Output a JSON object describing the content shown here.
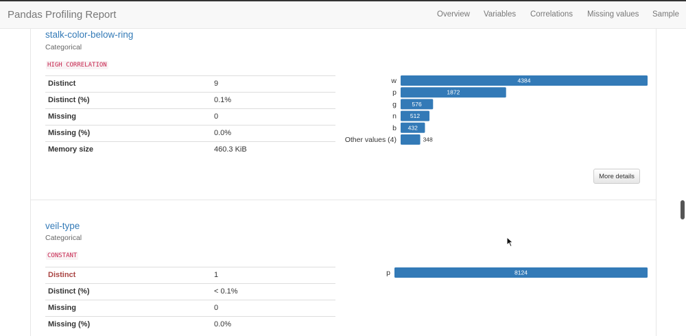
{
  "app": {
    "brand": "Pandas Profiling Report",
    "nav": [
      "Overview",
      "Variables",
      "Correlations",
      "Missing values",
      "Sample"
    ]
  },
  "variables": [
    {
      "name": "stalk-color-below-ring",
      "type": "Categorical",
      "badge": "HIGH CORRELATION",
      "stats": [
        {
          "key": "Distinct",
          "value": "9",
          "alert": false
        },
        {
          "key": "Distinct (%)",
          "value": "0.1%",
          "alert": false
        },
        {
          "key": "Missing",
          "value": "0",
          "alert": false
        },
        {
          "key": "Missing (%)",
          "value": "0.0%",
          "alert": false
        },
        {
          "key": "Memory size",
          "value": "460.3 KiB",
          "alert": false
        }
      ],
      "more_details_label": "More details",
      "bar_color": "#337ab7"
    },
    {
      "name": "veil-type",
      "type": "Categorical",
      "badge": "CONSTANT",
      "stats": [
        {
          "key": "Distinct",
          "value": "1",
          "alert": true
        },
        {
          "key": "Distinct (%)",
          "value": "< 0.1%",
          "alert": false
        },
        {
          "key": "Missing",
          "value": "0",
          "alert": false
        },
        {
          "key": "Missing (%)",
          "value": "0.0%",
          "alert": false
        }
      ],
      "bar_color": "#337ab7"
    }
  ],
  "chart_data": [
    {
      "type": "bar",
      "orientation": "horizontal",
      "categories": [
        "w",
        "p",
        "g",
        "n",
        "b",
        "Other values (4)"
      ],
      "values": [
        4384,
        1872,
        576,
        512,
        432,
        348
      ],
      "value_labels": [
        "4384",
        "1872",
        "576",
        "512",
        "432",
        "348"
      ]
    },
    {
      "type": "bar",
      "orientation": "horizontal",
      "categories": [
        "p"
      ],
      "values": [
        8124
      ],
      "value_labels": [
        "8124"
      ]
    }
  ]
}
